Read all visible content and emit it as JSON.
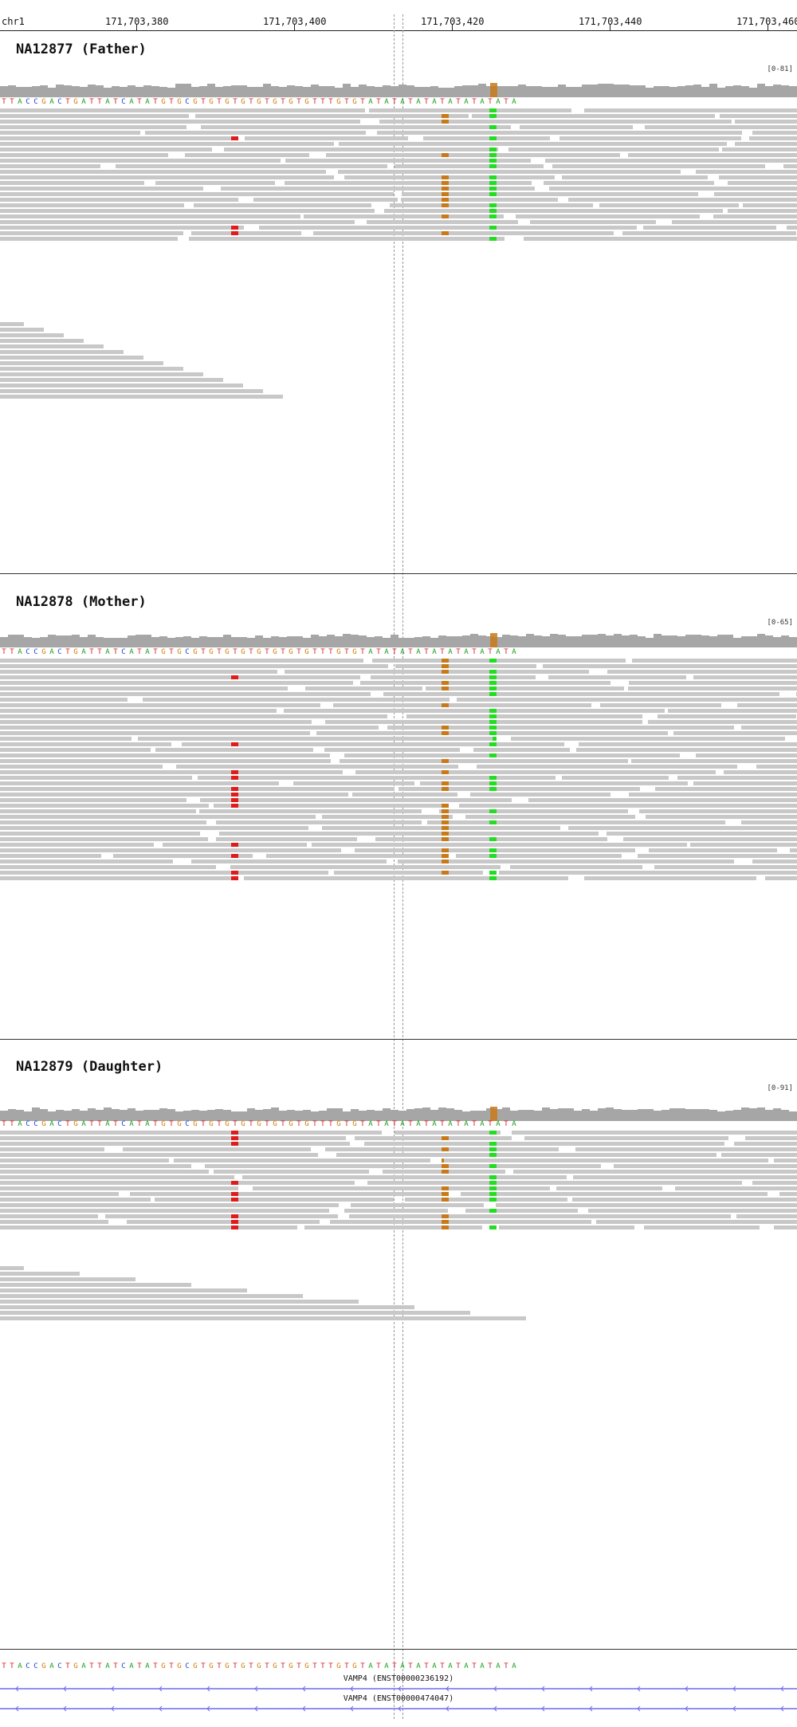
{
  "ruler": {
    "chromosome": "chr1",
    "positions": [
      "171,703,380",
      "171,703,400",
      "171,703,420",
      "171,703,440",
      "171,703,460"
    ]
  },
  "reference_sequence": "TTACCGACTGATTATCATATGTGCGTGTGTGTGTGTGTGTTTGTGTATATATATATATATATATA",
  "panels": [
    {
      "title": "NA12877 (Father)",
      "range": "[0-81]"
    },
    {
      "title": "NA12878 (Mother)",
      "range": "[0-65]"
    },
    {
      "title": "NA12879 (Daughter)",
      "range": "[0-91]"
    }
  ],
  "genes": [
    {
      "label": "VAMP4 (ENST00000236192)"
    },
    {
      "label": "VAMP4 (ENST00000474047)"
    }
  ],
  "colors": {
    "A": "#1a9e1a",
    "C": "#1f3fd6",
    "G": "#d17a00",
    "T": "#d61f1f",
    "read": "#c8c8c8",
    "coverage": "#a6a6a6",
    "mismatch_green": "#22dd22",
    "mismatch_orange": "#c87a1a",
    "mismatch_red": "#e01b1b",
    "gene": "#6c6cf0"
  }
}
